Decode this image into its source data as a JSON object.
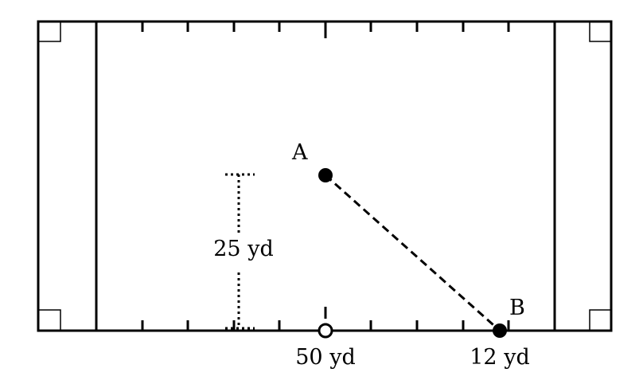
{
  "diagram": {
    "labels": {
      "point_a": "A",
      "point_b": "B",
      "vertical_distance": "25 yd",
      "midfield": "50 yd",
      "point_b_yardline": "12 yd"
    },
    "colors": {
      "ink": "#000000",
      "background": "#ffffff"
    }
  }
}
